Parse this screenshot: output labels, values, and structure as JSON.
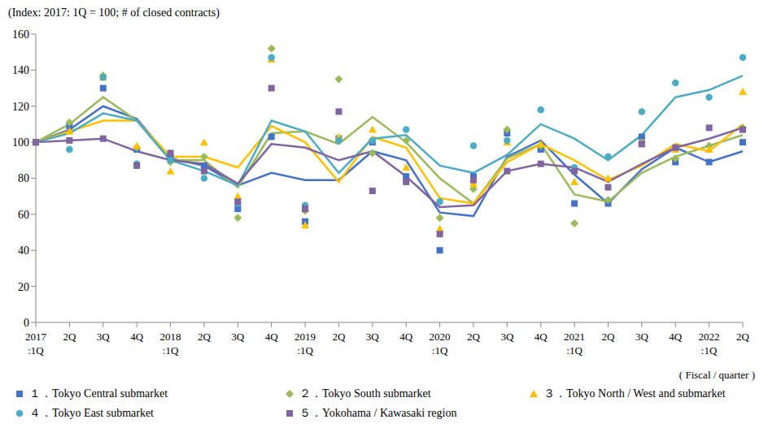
{
  "chart_data": {
    "type": "line",
    "ylabel": "(Index: 2017: 1Q = 100; # of closed contracts)",
    "xlabel": "( Fiscal / quarter )",
    "categories": [
      "2017:1Q",
      "2Q",
      "3Q",
      "4Q",
      "2018:1Q",
      "2Q",
      "3Q",
      "4Q",
      "2019:1Q",
      "2Q",
      "3Q",
      "4Q",
      "2020:1Q",
      "2Q",
      "3Q",
      "4Q",
      "2021:1Q",
      "2Q",
      "3Q",
      "4Q",
      "2022:1Q",
      "2Q"
    ],
    "ylim": [
      0,
      160
    ],
    "yticks": [
      0,
      20,
      40,
      60,
      80,
      100,
      120,
      140,
      160
    ],
    "grid": false,
    "legend": "bottom",
    "series": [
      {
        "name": "１．Tokyo Central submarket",
        "color": "#4472c4",
        "marker": "square",
        "values": [
          100,
          109,
          130,
          96,
          92,
          87,
          63,
          103,
          56,
          102,
          100,
          81,
          40,
          81,
          105,
          96,
          66,
          66,
          103,
          89,
          89,
          100
        ],
        "trend": [
          100,
          107,
          120,
          113,
          91,
          87,
          76,
          83,
          79,
          79,
          95,
          90,
          61,
          59,
          92,
          101,
          82,
          66,
          85,
          97,
          89,
          95
        ]
      },
      {
        "name": "２．Tokyo South submarket",
        "color": "#9bbb59",
        "marker": "diamond",
        "values": [
          100,
          111,
          137,
          97,
          89,
          92,
          58,
          152,
          62,
          135,
          94,
          101,
          58,
          74,
          107,
          98,
          55,
          68,
          100,
          91,
          98,
          108
        ],
        "trend": [
          100,
          110,
          125,
          112,
          90,
          90,
          75,
          105,
          106,
          99,
          114,
          100,
          80,
          66,
          91,
          99,
          71,
          67,
          83,
          92,
          98,
          104
        ]
      },
      {
        "name": "３．Tokyo North / West and  submarket",
        "color": "#ffc000",
        "marker": "triangle",
        "values": [
          100,
          106,
          136,
          98,
          84,
          100,
          70,
          146,
          54,
          103,
          107,
          86,
          52,
          77,
          100,
          99,
          78,
          80,
          99,
          96,
          96,
          128
        ],
        "trend": [
          100,
          106,
          112,
          112,
          92,
          92,
          86,
          109,
          100,
          78,
          103,
          97,
          69,
          66,
          89,
          99,
          90,
          79,
          87,
          99,
          95,
          110
        ]
      },
      {
        "name": "４．Tokyo East submarket",
        "color": "#4bacc6",
        "marker": "circle",
        "values": [
          100,
          96,
          136,
          88,
          90,
          80,
          66,
          147,
          65,
          101,
          101,
          107,
          67,
          98,
          101,
          118,
          86,
          92,
          117,
          133,
          125,
          147
        ],
        "trend": [
          100,
          105,
          116,
          112,
          90,
          84,
          76,
          112,
          106,
          83,
          102,
          104,
          87,
          83,
          93,
          110,
          102,
          90,
          104,
          125,
          129,
          137
        ]
      },
      {
        "name": "５．Yokohama / Kawasaki region",
        "color": "#8064a2",
        "marker": "square",
        "values": [
          100,
          101,
          102,
          87,
          94,
          84,
          67,
          130,
          63,
          117,
          73,
          78,
          49,
          79,
          84,
          88,
          84,
          75,
          99,
          97,
          108,
          107
        ],
        "trend": [
          100,
          101,
          102,
          95,
          90,
          88,
          77,
          99,
          97,
          90,
          95,
          81,
          64,
          65,
          84,
          88,
          86,
          78,
          88,
          97,
          102,
          108
        ]
      }
    ]
  }
}
